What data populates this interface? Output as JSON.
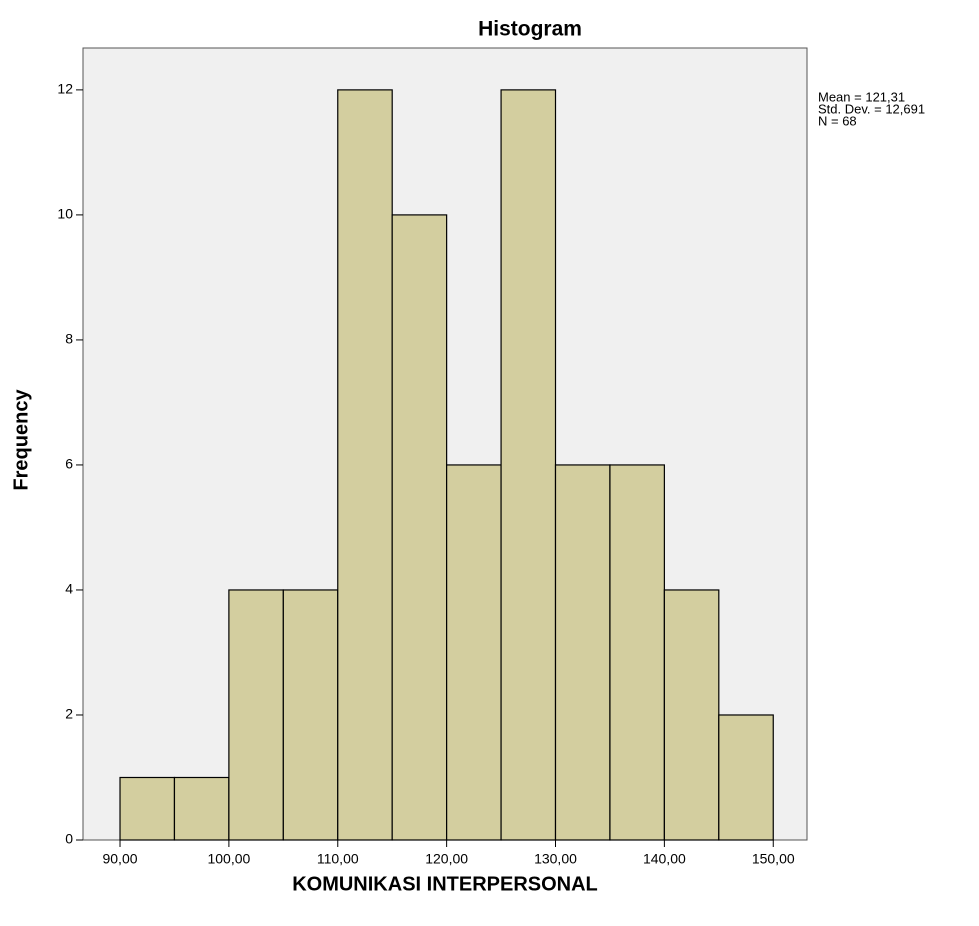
{
  "chart_data": {
    "type": "histogram",
    "title": "Histogram",
    "x_label": "KOMUNIKASI INTERPERSONAL",
    "y_label": "Frequency",
    "bins": [
      90,
      95,
      100,
      105,
      110,
      115,
      120,
      125,
      130,
      135,
      140,
      145,
      150
    ],
    "values": [
      1,
      1,
      4,
      4,
      12,
      10,
      6,
      12,
      6,
      6,
      4,
      2
    ],
    "color": "#d3ce9f",
    "xlim": [
      86.6,
      153.1
    ],
    "xticks": [
      {
        "value": 90,
        "label": "90,00"
      },
      {
        "value": 100,
        "label": "100,00"
      },
      {
        "value": 110,
        "label": "110,00"
      },
      {
        "value": 120,
        "label": "120,00"
      },
      {
        "value": 130,
        "label": "130,00"
      },
      {
        "value": 140,
        "label": "140,00"
      },
      {
        "value": 150,
        "label": "150,00"
      }
    ],
    "ylim": [
      0,
      12.67
    ],
    "yticks": [
      0,
      2,
      4,
      6,
      8,
      10,
      12
    ],
    "annotations": [
      "Mean = 121,31",
      "Std. Dev. = 12,691",
      "N = 68"
    ]
  }
}
